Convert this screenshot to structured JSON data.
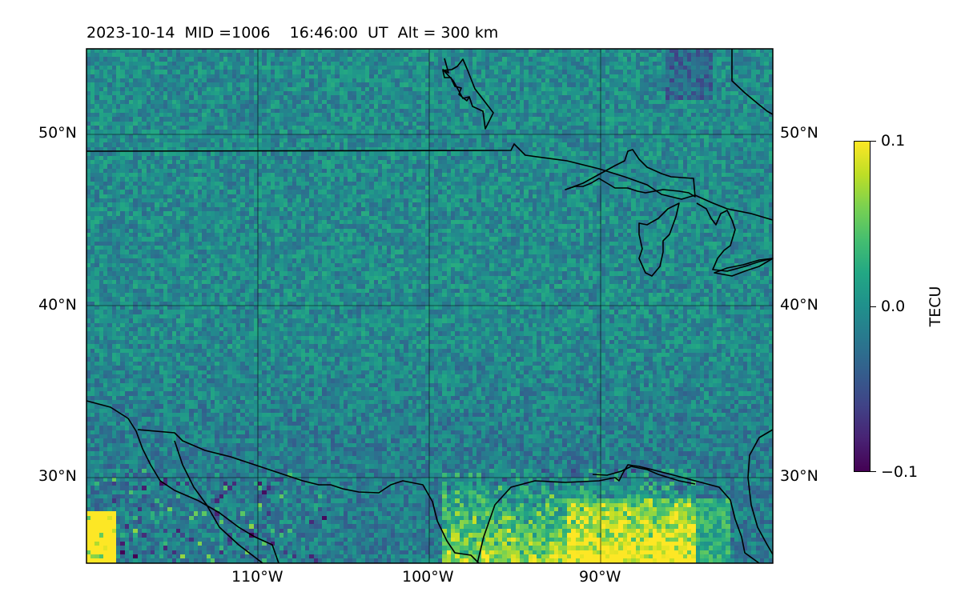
{
  "header": {
    "date": "2023-10-14",
    "mid": "MID =1006",
    "time": "16:46:00  UT",
    "alt": "Alt = 300 km"
  },
  "map": {
    "lon_range": [
      -120,
      -80
    ],
    "lat_range": [
      25,
      55
    ],
    "lat_labels": [
      "50°N",
      "40°N",
      "30°N"
    ],
    "lon_labels": [
      "110°W",
      "100°W",
      "90°W"
    ],
    "gridlines": {
      "lats": [
        50,
        40,
        30
      ],
      "lons": [
        -110,
        -100,
        -90
      ]
    },
    "colormap": "viridis",
    "regional_pattern": [
      {
        "region": "far southwest corner (Mexico)",
        "value": "0.1"
      },
      {
        "region": "Gulf of Mexico / Texas coast",
        "value": "high"
      },
      {
        "region": "central & southern plains",
        "value": "slightly negative"
      },
      {
        "region": "northern US / Canada",
        "value": "near 0"
      },
      {
        "region": "Hudson Bay patch",
        "value": "negative"
      }
    ]
  },
  "colorbar": {
    "label": "TECU",
    "ticks": [
      "0.1",
      "0.0",
      "−0.1"
    ],
    "vmin": -0.1,
    "vmax": 0.1
  }
}
